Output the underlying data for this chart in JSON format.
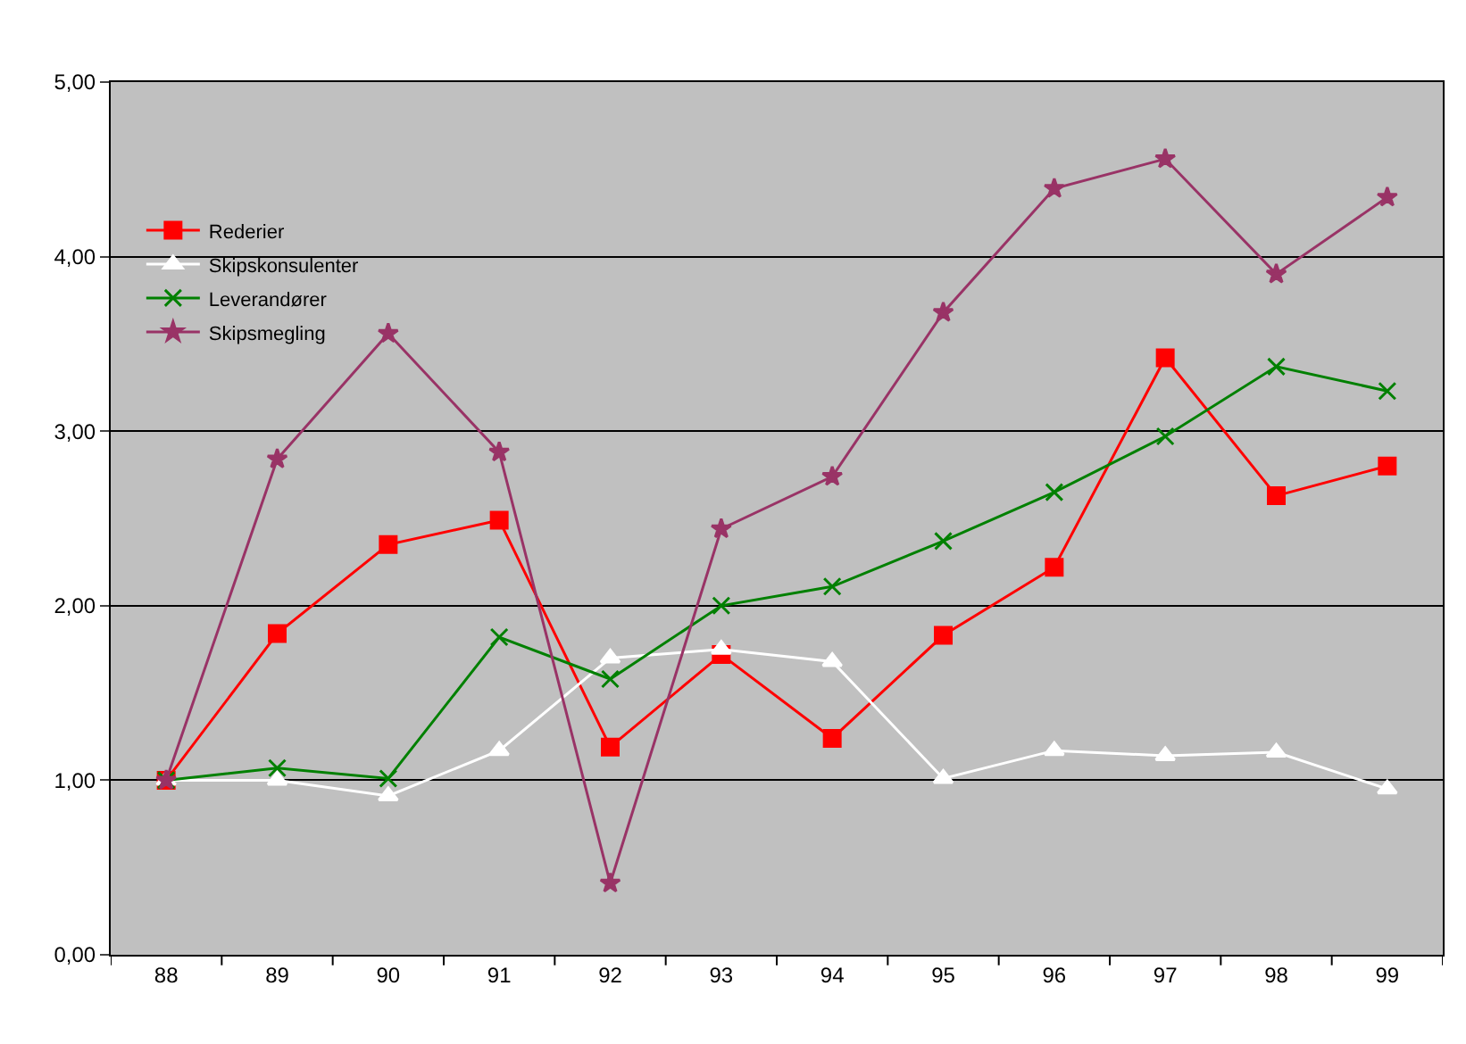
{
  "chart_data": {
    "type": "line",
    "categories": [
      "88",
      "89",
      "90",
      "91",
      "92",
      "93",
      "94",
      "95",
      "96",
      "97",
      "98",
      "99"
    ],
    "series": [
      {
        "name": "Rederier",
        "color": "#ff0000",
        "marker": "square",
        "values": [
          1.0,
          1.84,
          2.35,
          2.49,
          1.19,
          1.72,
          1.24,
          1.83,
          2.22,
          3.42,
          2.63,
          2.8
        ]
      },
      {
        "name": "Skipskonsulenter",
        "color": "#ffffff",
        "marker": "triangle",
        "values": [
          1.0,
          1.0,
          0.91,
          1.17,
          1.7,
          1.75,
          1.68,
          1.01,
          1.17,
          1.14,
          1.16,
          0.95
        ]
      },
      {
        "name": "Leverandører",
        "color": "#008000",
        "marker": "cross",
        "values": [
          1.0,
          1.07,
          1.01,
          1.82,
          1.58,
          2.0,
          2.11,
          2.37,
          2.65,
          2.97,
          3.37,
          3.23
        ]
      },
      {
        "name": "Skipsmegling",
        "color": "#993366",
        "marker": "star",
        "values": [
          1.0,
          2.84,
          3.56,
          2.88,
          0.41,
          2.44,
          2.74,
          3.68,
          4.39,
          4.56,
          3.9,
          4.34
        ]
      }
    ],
    "ylim": [
      0,
      5
    ],
    "yticks": [
      {
        "value": 0,
        "label": "0,00"
      },
      {
        "value": 1,
        "label": "1,00"
      },
      {
        "value": 2,
        "label": "2,00"
      },
      {
        "value": 3,
        "label": "3,00"
      },
      {
        "value": 4,
        "label": "4,00"
      },
      {
        "value": 5,
        "label": "5,00"
      }
    ],
    "grid": "y",
    "legend": "top left",
    "line_style": "solid"
  }
}
